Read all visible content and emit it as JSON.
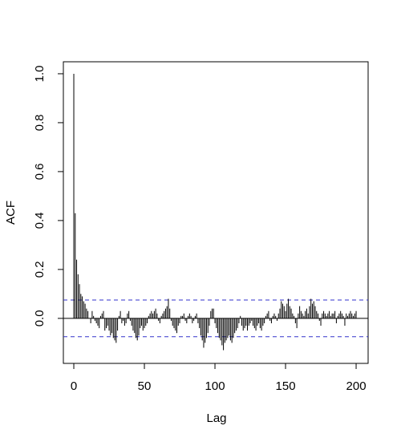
{
  "chart_data": {
    "type": "acf",
    "x_label": "Lag",
    "y_label": "ACF",
    "x": [
      0,
      1,
      2,
      3,
      4,
      5,
      6,
      7,
      8,
      9,
      10,
      11,
      12,
      13,
      14,
      15,
      16,
      17,
      18,
      19,
      20,
      21,
      22,
      23,
      24,
      25,
      26,
      27,
      28,
      29,
      30,
      31,
      32,
      33,
      34,
      35,
      36,
      37,
      38,
      39,
      40,
      41,
      42,
      43,
      44,
      45,
      46,
      47,
      48,
      49,
      50,
      51,
      52,
      53,
      54,
      55,
      56,
      57,
      58,
      59,
      60,
      61,
      62,
      63,
      64,
      65,
      66,
      67,
      68,
      69,
      70,
      71,
      72,
      73,
      74,
      75,
      76,
      77,
      78,
      79,
      80,
      81,
      82,
      83,
      84,
      85,
      86,
      87,
      88,
      89,
      90,
      91,
      92,
      93,
      94,
      95,
      96,
      97,
      98,
      99,
      100,
      101,
      102,
      103,
      104,
      105,
      106,
      107,
      108,
      109,
      110,
      111,
      112,
      113,
      114,
      115,
      116,
      117,
      118,
      119,
      120,
      121,
      122,
      123,
      124,
      125,
      126,
      127,
      128,
      129,
      130,
      131,
      132,
      133,
      134,
      135,
      136,
      137,
      138,
      139,
      140,
      141,
      142,
      143,
      144,
      145,
      146,
      147,
      148,
      149,
      150,
      151,
      152,
      153,
      154,
      155,
      156,
      157,
      158,
      159,
      160,
      161,
      162,
      163,
      164,
      165,
      166,
      167,
      168,
      169,
      170,
      171,
      172,
      173,
      174,
      175,
      176,
      177,
      178,
      179,
      180,
      181,
      182,
      183,
      184,
      185,
      186,
      187,
      188,
      189,
      190,
      191,
      192,
      193,
      194,
      195,
      196,
      197,
      198,
      199,
      200
    ],
    "values": [
      1.0,
      0.43,
      0.24,
      0.18,
      0.14,
      0.1,
      0.09,
      0.07,
      0.06,
      0.04,
      0.03,
      0.0,
      -0.02,
      0.03,
      0.01,
      -0.01,
      -0.02,
      -0.03,
      -0.04,
      0.01,
      0.02,
      0.03,
      -0.05,
      -0.04,
      -0.03,
      -0.05,
      -0.07,
      -0.06,
      -0.08,
      -0.09,
      -0.1,
      -0.05,
      0.01,
      0.03,
      -0.02,
      -0.01,
      -0.03,
      -0.02,
      0.02,
      0.03,
      -0.01,
      -0.03,
      -0.05,
      -0.06,
      -0.08,
      -0.09,
      -0.07,
      -0.04,
      -0.03,
      -0.05,
      -0.04,
      -0.03,
      -0.02,
      0.01,
      0.02,
      0.03,
      0.02,
      0.03,
      0.04,
      0.02,
      -0.01,
      -0.02,
      0.01,
      0.02,
      0.03,
      0.04,
      0.05,
      0.08,
      0.04,
      -0.01,
      -0.03,
      -0.04,
      -0.05,
      -0.06,
      -0.03,
      -0.02,
      0.01,
      0.01,
      0.02,
      -0.01,
      -0.02,
      0.01,
      0.02,
      0.01,
      -0.02,
      -0.01,
      0.01,
      0.02,
      -0.02,
      -0.04,
      -0.07,
      -0.09,
      -0.12,
      -0.1,
      -0.08,
      -0.06,
      -0.03,
      0.03,
      0.04,
      0.04,
      -0.02,
      -0.04,
      -0.06,
      -0.08,
      -0.09,
      -0.11,
      -0.13,
      -0.1,
      -0.09,
      -0.08,
      -0.07,
      -0.09,
      -0.1,
      -0.08,
      -0.06,
      -0.05,
      -0.04,
      -0.02,
      0.01,
      -0.03,
      -0.05,
      -0.04,
      -0.03,
      -0.05,
      -0.03,
      -0.02,
      -0.01,
      -0.03,
      -0.04,
      -0.05,
      -0.03,
      -0.02,
      -0.04,
      -0.05,
      -0.03,
      -0.02,
      0.01,
      0.02,
      0.03,
      -0.01,
      -0.02,
      0.01,
      0.02,
      0.01,
      -0.01,
      0.02,
      0.04,
      0.07,
      0.06,
      0.05,
      0.03,
      0.06,
      0.08,
      0.05,
      0.04,
      0.02,
      0.01,
      -0.02,
      -0.04,
      0.02,
      0.05,
      0.03,
      0.02,
      0.01,
      0.03,
      0.04,
      0.02,
      0.05,
      0.08,
      0.06,
      0.07,
      0.05,
      0.03,
      0.02,
      -0.01,
      -0.03,
      0.02,
      0.03,
      0.02,
      0.01,
      0.02,
      0.03,
      0.01,
      0.02,
      0.02,
      0.03,
      -0.02,
      0.01,
      0.02,
      0.03,
      0.02,
      0.01,
      -0.03,
      0.02,
      0.01,
      0.02,
      0.03,
      0.02,
      0.01,
      0.02,
      0.03
    ],
    "color": "#000000",
    "ci": {
      "values": [
        0.075,
        -0.075
      ],
      "color": "#3333cc"
    },
    "xlim": [
      -7.4,
      208.5
    ],
    "xticks": [
      0,
      50,
      100,
      150,
      200
    ],
    "ylim": [
      -0.184,
      1.049
    ],
    "yticks": [
      {
        "value": 0,
        "label": "0.0"
      },
      0.2,
      0.4,
      0.6,
      0.8,
      {
        "value": 1,
        "label": "1.0"
      }
    ]
  }
}
